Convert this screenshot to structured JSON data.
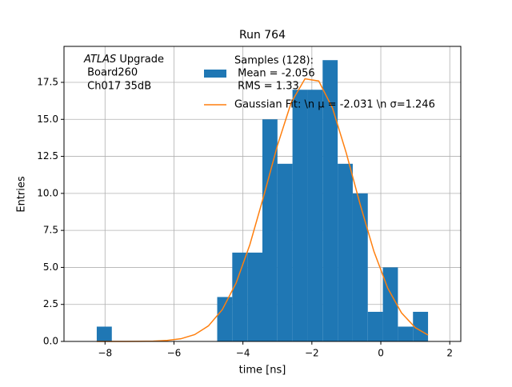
{
  "chart_data": {
    "type": "histogram",
    "title": "Run 764",
    "xlabel": "time [ns]",
    "ylabel": "Entries",
    "annotation": [
      {
        "italic": "ATLAS",
        "text": " Upgrade"
      },
      " Board260",
      " Ch017 35dB"
    ],
    "bins": [
      -8.24,
      -7.803,
      -7.366,
      -6.93,
      -6.493,
      -6.056,
      -5.619,
      -5.182,
      -4.746,
      -4.309,
      -3.872,
      -3.435,
      -2.998,
      -2.562,
      -2.125,
      -1.688,
      -1.251,
      -0.814,
      -0.378,
      0.059,
      0.496,
      0.933,
      1.37
    ],
    "series": [
      {
        "name": [
          "Samples (128):",
          " Mean = -2.056",
          " RMS = 1.33"
        ],
        "type": "histogram",
        "color": "#1f77b4",
        "values": [
          1,
          0,
          0,
          0,
          0,
          0,
          0,
          0,
          3,
          6,
          6,
          15,
          12,
          17,
          17,
          19,
          12,
          10,
          2,
          5,
          1,
          2
        ]
      },
      {
        "name": "Gaussian Fit: \\n μ = -2.031 \\n σ=1.246",
        "type": "line",
        "color": "#ff7f0e",
        "x": [
          -8.24,
          -7.8,
          -7.4,
          -7.0,
          -6.6,
          -6.2,
          -5.8,
          -5.4,
          -5.0,
          -4.6,
          -4.2,
          -3.8,
          -3.4,
          -3.0,
          -2.6,
          -2.2,
          -1.8,
          -1.4,
          -1.0,
          -0.6,
          -0.2,
          0.2,
          0.6,
          1.0,
          1.37
        ],
        "values": [
          0.0001,
          0.0004,
          0.0017,
          0.0063,
          0.022,
          0.066,
          0.18,
          0.46,
          1.05,
          2.14,
          3.93,
          6.53,
          9.79,
          13.23,
          16.13,
          17.74,
          17.59,
          15.75,
          12.71,
          9.26,
          6.08,
          3.6,
          1.93,
          0.93,
          0.43
        ]
      }
    ],
    "xlim": [
      -9.19,
      2.32
    ],
    "ylim": [
      0,
      19.93
    ],
    "xticks": [
      {
        "value": -8,
        "label": "−8"
      },
      {
        "value": -6,
        "label": "−6"
      },
      {
        "value": -4,
        "label": "−4"
      },
      {
        "value": -2,
        "label": "−2"
      },
      0,
      2
    ],
    "yticks": [
      {
        "value": 0,
        "label": "0.0"
      },
      2.5,
      {
        "value": 5,
        "label": "5.0"
      },
      7.5,
      {
        "value": 10,
        "label": "10.0"
      },
      12.5,
      {
        "value": 15,
        "label": "15.0"
      },
      17.5
    ],
    "grid": true
  }
}
